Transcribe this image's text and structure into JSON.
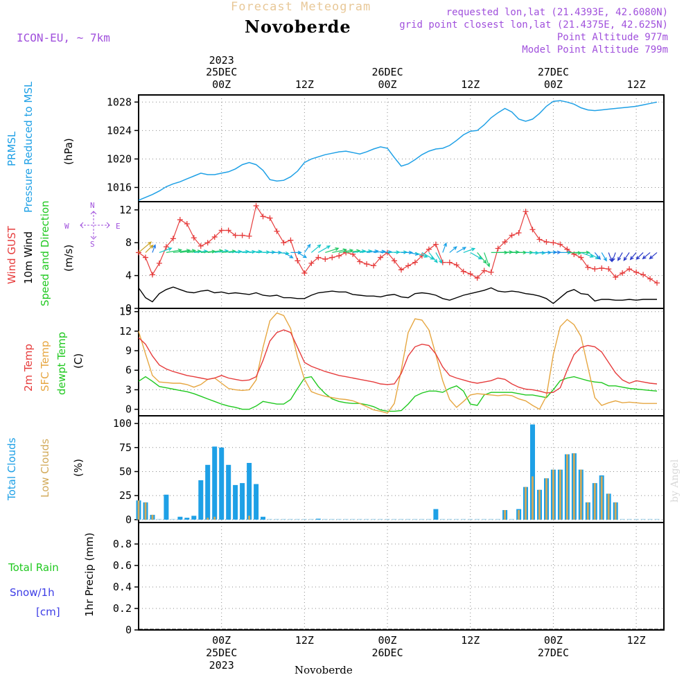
{
  "header": {
    "product": "Forecast Meteogram",
    "location": "Novoberde",
    "model": "ICON-EU, ~ 7km",
    "requested": "requested lon,lat (21.4393E, 42.6080N)",
    "gridpoint": "grid point closest lon,lat (21.4375E, 42.625N)",
    "point_alt": "Point Altitude 977m",
    "model_alt": "Model Point Altitude 799m",
    "footer_location": "Novoberde",
    "credit": "by Angel"
  },
  "time_axis": {
    "top": [
      {
        "l1": "2023",
        "l2": "25DEC",
        "l3": "00Z",
        "h": 12
      },
      {
        "l1": "",
        "l2": "",
        "l3": "12Z",
        "h": 24
      },
      {
        "l1": "",
        "l2": "26DEC",
        "l3": "00Z",
        "h": 36
      },
      {
        "l1": "",
        "l2": "",
        "l3": "12Z",
        "h": 48
      },
      {
        "l1": "",
        "l2": "27DEC",
        "l3": "00Z",
        "h": 60
      },
      {
        "l1": "",
        "l2": "",
        "l3": "12Z",
        "h": 72
      }
    ],
    "bottom": [
      {
        "l1": "00Z",
        "l2": "25DEC",
        "l3": "2023",
        "h": 12
      },
      {
        "l1": "12Z",
        "l2": "",
        "l3": "",
        "h": 24
      },
      {
        "l1": "00Z",
        "l2": "26DEC",
        "l3": "",
        "h": 36
      },
      {
        "l1": "12Z",
        "l2": "",
        "l3": "",
        "h": 48
      },
      {
        "l1": "00Z",
        "l2": "27DEC",
        "l3": "",
        "h": 60
      },
      {
        "l1": "12Z",
        "l2": "",
        "l3": "",
        "h": 72
      }
    ]
  },
  "panels": {
    "pressure": {
      "label1": "PRMSL",
      "label2": "Pressure Reduced to MSL",
      "unit": "(hPa)"
    },
    "wind": {
      "gust": "Wind GUST",
      "wind10": "10m Wind",
      "speed": "Speed and Direction",
      "unit": "(m/s)",
      "compass_n": "N",
      "compass_w": "W",
      "compass_e": "E",
      "compass_s": "S"
    },
    "temp": {
      "t2m": "2m Temp",
      "sfc": "SFC Temp",
      "dewpt": "dewpt Temp",
      "unit": "(C)"
    },
    "clouds": {
      "total": "Total Clouds",
      "low": "Low Clouds",
      "unit": "(%)"
    },
    "precip": {
      "rain": "Total  Rain",
      "snow": "Snow/1h",
      "cm": "[cm]",
      "unit": "1hr Precip (mm)"
    }
  },
  "colors": {
    "pressure": "#1ea0e6",
    "gust": "#e63c3c",
    "wind10": "#000000",
    "t2m": "#e63c3c",
    "sfc": "#e6a640",
    "dewpt": "#1ec81e",
    "total_cloud": "#1ea0e6",
    "low_cloud": "#d2aa5a",
    "precip_label": "#1ec81e",
    "snow_label": "#3c3ce6",
    "purple": "#a050dc",
    "title": "#e8c898"
  },
  "chart_data": [
    {
      "type": "line",
      "name": "PRMSL",
      "unit": "hPa",
      "ylim": [
        1014,
        1029
      ],
      "yticks": [
        1016,
        1020,
        1024,
        1028
      ],
      "x": [
        0,
        1,
        2,
        3,
        4,
        5,
        6,
        7,
        8,
        9,
        10,
        11,
        12,
        13,
        14,
        15,
        16,
        17,
        18,
        19,
        20,
        21,
        22,
        23,
        24,
        25,
        26,
        27,
        28,
        29,
        30,
        31,
        32,
        33,
        34,
        35,
        36,
        37,
        38,
        39,
        40,
        41,
        42,
        43,
        44,
        45,
        46,
        47,
        48,
        49,
        50,
        51,
        52,
        53,
        54,
        55,
        56,
        57,
        58,
        59,
        60,
        61,
        62,
        63,
        64,
        65,
        66,
        67,
        68,
        69,
        70,
        71,
        72,
        73,
        74,
        75
      ],
      "values": [
        1014.2,
        1014.6,
        1015.0,
        1015.5,
        1016.1,
        1016.5,
        1016.8,
        1017.2,
        1017.6,
        1018.0,
        1017.8,
        1017.8,
        1018.0,
        1018.2,
        1018.6,
        1019.2,
        1019.5,
        1019.2,
        1018.4,
        1017.1,
        1016.9,
        1017.0,
        1017.5,
        1018.3,
        1019.5,
        1020.0,
        1020.3,
        1020.6,
        1020.8,
        1021.0,
        1021.1,
        1020.9,
        1020.7,
        1021.0,
        1021.4,
        1021.7,
        1021.5,
        1020.2,
        1019.0,
        1019.3,
        1019.9,
        1020.6,
        1021.1,
        1021.4,
        1021.5,
        1021.9,
        1022.6,
        1023.4,
        1023.9,
        1024.0,
        1024.8,
        1025.8,
        1026.5,
        1027.1,
        1026.6,
        1025.6,
        1025.3,
        1025.6,
        1026.4,
        1027.4,
        1028.1,
        1028.2,
        1028.0,
        1027.7,
        1027.2,
        1026.9,
        1026.8,
        1026.9,
        1027.0,
        1027.1,
        1027.2,
        1027.3,
        1027.4,
        1027.6,
        1027.8,
        1028.0
      ]
    },
    {
      "type": "line",
      "name": "Wind GUST / 10m Wind",
      "unit": "m/s",
      "ylim": [
        0,
        13
      ],
      "yticks": [
        0,
        4,
        8,
        12
      ],
      "x": [
        0,
        1,
        2,
        3,
        4,
        5,
        6,
        7,
        8,
        9,
        10,
        11,
        12,
        13,
        14,
        15,
        16,
        17,
        18,
        19,
        20,
        21,
        22,
        23,
        24,
        25,
        26,
        27,
        28,
        29,
        30,
        31,
        32,
        33,
        34,
        35,
        36,
        37,
        38,
        39,
        40,
        41,
        42,
        43,
        44,
        45,
        46,
        47,
        48,
        49,
        50,
        51,
        52,
        53,
        54,
        55,
        56,
        57,
        58,
        59,
        60,
        61,
        62,
        63,
        64,
        65,
        66,
        67,
        68,
        69,
        70,
        71,
        72,
        73,
        74,
        75
      ],
      "gust": [
        6.8,
        6.2,
        4.1,
        5.5,
        7.5,
        8.5,
        10.8,
        10.3,
        8.6,
        7.6,
        8.0,
        8.7,
        9.5,
        9.5,
        8.9,
        8.9,
        8.8,
        12.5,
        11.2,
        11.0,
        9.4,
        8.0,
        8.3,
        5.8,
        4.3,
        5.5,
        6.2,
        6.0,
        6.2,
        6.4,
        6.8,
        6.6,
        5.7,
        5.4,
        5.2,
        6.2,
        6.8,
        5.8,
        4.7,
        5.2,
        5.6,
        6.4,
        7.2,
        7.8,
        5.6,
        5.6,
        5.3,
        4.5,
        4.2,
        3.7,
        4.6,
        4.4,
        7.3,
        8.1,
        8.9,
        9.2,
        11.8,
        9.6,
        8.4,
        8.1,
        8.0,
        7.8,
        7.2,
        6.6,
        6.2,
        5.0,
        4.8,
        4.9,
        4.8,
        3.8,
        4.3,
        4.8,
        4.4,
        4.1,
        3.6,
        3.1
      ],
      "wind10": [
        2.5,
        1.3,
        0.8,
        1.8,
        2.3,
        2.6,
        2.3,
        2.0,
        1.9,
        2.1,
        2.2,
        1.9,
        2.0,
        1.8,
        1.9,
        1.8,
        1.7,
        1.9,
        1.6,
        1.5,
        1.6,
        1.3,
        1.3,
        1.2,
        1.2,
        1.6,
        1.9,
        2.0,
        2.1,
        2.0,
        2.0,
        1.7,
        1.6,
        1.5,
        1.5,
        1.4,
        1.6,
        1.7,
        1.4,
        1.3,
        1.8,
        1.9,
        1.8,
        1.6,
        1.2,
        1.0,
        1.3,
        1.6,
        1.8,
        2.0,
        2.2,
        2.5,
        2.1,
        2.0,
        2.1,
        2.0,
        1.8,
        1.7,
        1.5,
        1.2,
        0.6,
        1.3,
        2.0,
        2.3,
        1.8,
        1.7,
        0.9,
        1.1,
        1.1,
        1.0,
        1.0,
        1.1,
        1.0,
        1.1,
        1.1,
        1.1
      ]
    },
    {
      "type": "line",
      "name": "2m Temp / SFC Temp / dewpt Temp",
      "unit": "C",
      "ylim": [
        -1,
        15.5
      ],
      "yticks": [
        0,
        3,
        6,
        9,
        12,
        15
      ],
      "x": [
        0,
        1,
        2,
        3,
        4,
        5,
        6,
        7,
        8,
        9,
        10,
        11,
        12,
        13,
        14,
        15,
        16,
        17,
        18,
        19,
        20,
        21,
        22,
        23,
        24,
        25,
        26,
        27,
        28,
        29,
        30,
        31,
        32,
        33,
        34,
        35,
        36,
        37,
        38,
        39,
        40,
        41,
        42,
        43,
        44,
        45,
        46,
        47,
        48,
        49,
        50,
        51,
        52,
        53,
        54,
        55,
        56,
        57,
        58,
        59,
        60,
        61,
        62,
        63,
        64,
        65,
        66,
        67,
        68,
        69,
        70,
        71,
        72,
        73,
        74,
        75
      ],
      "t2m": [
        11,
        10,
        8.2,
        6.8,
        6.2,
        5.8,
        5.5,
        5.2,
        5.0,
        4.8,
        4.6,
        4.8,
        5.2,
        4.8,
        4.6,
        4.4,
        4.5,
        5.0,
        7.5,
        10.5,
        11.8,
        12.2,
        11.8,
        9.5,
        7.2,
        6.6,
        6.2,
        5.8,
        5.5,
        5.2,
        5.0,
        4.8,
        4.6,
        4.4,
        4.2,
        3.9,
        3.8,
        3.9,
        5.5,
        8.2,
        9.6,
        10.0,
        9.8,
        8.5,
        6.5,
        5.2,
        4.8,
        4.5,
        4.2,
        4.0,
        4.2,
        4.4,
        4.8,
        4.6,
        3.9,
        3.4,
        3.1,
        3.0,
        2.8,
        2.5,
        2.6,
        3.3,
        6.0,
        8.4,
        9.5,
        9.8,
        9.6,
        8.8,
        7.2,
        5.6,
        4.5,
        4.0,
        4.4,
        4.2,
        4.0,
        3.9
      ],
      "sfc": [
        12,
        8.5,
        5.2,
        4.2,
        4.1,
        4.0,
        4.0,
        3.8,
        3.4,
        3.8,
        4.6,
        4.8,
        4.0,
        3.2,
        3.0,
        2.9,
        3.0,
        4.5,
        9.5,
        13.6,
        14.8,
        14.4,
        12.4,
        8.0,
        4.6,
        2.7,
        2.3,
        2.0,
        1.8,
        1.6,
        1.5,
        1.3,
        0.9,
        0.4,
        -0.1,
        -0.3,
        -0.6,
        0.9,
        6.0,
        11.8,
        13.9,
        13.7,
        12.2,
        8.4,
        4.4,
        1.5,
        0.3,
        1.2,
        2.2,
        2.4,
        2.3,
        2.2,
        2.1,
        2.2,
        2.1,
        1.6,
        1.3,
        0.6,
        0.0,
        2.0,
        8.4,
        12.7,
        13.8,
        13.0,
        11.2,
        6.5,
        1.8,
        0.6,
        1.0,
        1.3,
        1.0,
        1.1,
        1.0,
        0.9,
        0.9,
        0.9
      ],
      "dewpt": [
        4.3,
        5.0,
        4.3,
        3.5,
        3.3,
        3.1,
        2.9,
        2.7,
        2.4,
        2.0,
        1.6,
        1.2,
        0.8,
        0.5,
        0.3,
        0.0,
        0.0,
        0.5,
        1.2,
        1.0,
        0.8,
        0.8,
        1.5,
        3.2,
        4.8,
        5.0,
        3.5,
        2.4,
        1.6,
        1.2,
        1.0,
        0.9,
        0.9,
        0.7,
        0.4,
        -0.1,
        -0.3,
        -0.3,
        -0.2,
        0.8,
        2.0,
        2.5,
        2.8,
        2.8,
        2.6,
        3.2,
        3.6,
        2.8,
        0.8,
        0.6,
        2.2,
        2.6,
        2.6,
        2.6,
        2.6,
        2.4,
        2.2,
        2.2,
        2.0,
        1.8,
        3.0,
        4.4,
        4.8,
        5.0,
        4.7,
        4.4,
        4.2,
        4.1,
        3.6,
        3.6,
        3.4,
        3.2,
        3.1,
        3.0,
        2.9,
        2.8
      ]
    },
    {
      "type": "bar",
      "name": "Total Clouds / Low Clouds",
      "unit": "%",
      "ylim": [
        -3,
        108
      ],
      "yticks": [
        0,
        25,
        50,
        75,
        100
      ],
      "x": [
        0,
        1,
        2,
        3,
        4,
        5,
        6,
        7,
        8,
        9,
        10,
        11,
        12,
        13,
        14,
        15,
        16,
        17,
        18,
        19,
        20,
        21,
        22,
        23,
        24,
        25,
        26,
        27,
        28,
        29,
        30,
        31,
        32,
        33,
        34,
        35,
        36,
        37,
        38,
        39,
        40,
        41,
        42,
        43,
        44,
        45,
        46,
        47,
        48,
        49,
        50,
        51,
        52,
        53,
        54,
        55,
        56,
        57,
        58,
        59,
        60,
        61,
        62,
        63,
        64,
        65,
        66,
        67,
        68,
        69,
        70,
        71,
        72,
        73,
        74,
        75
      ],
      "total": [
        20,
        18,
        5,
        0,
        26,
        0,
        3,
        2,
        4,
        41,
        57,
        76,
        75,
        57,
        36,
        38,
        59,
        37,
        3,
        0,
        0,
        0,
        0,
        0,
        0,
        0,
        1,
        0,
        0,
        0,
        0,
        0,
        0,
        0,
        0,
        0,
        0,
        0,
        0,
        0,
        0,
        0,
        0,
        11,
        0,
        0,
        0,
        0,
        0,
        0,
        0,
        0,
        0,
        10,
        0,
        11,
        34,
        99,
        31,
        43,
        52,
        52,
        68,
        69,
        52,
        18,
        38,
        46,
        27,
        18,
        0,
        0,
        0,
        0,
        0,
        0
      ],
      "low": [
        20,
        18,
        5,
        0,
        0,
        0,
        0,
        0,
        0,
        0,
        2,
        3,
        0,
        0,
        0,
        0,
        4,
        0,
        0,
        0,
        0,
        0,
        0,
        0,
        0,
        0,
        0,
        0,
        0,
        0,
        0,
        0,
        0,
        0,
        0,
        0,
        0,
        0,
        0,
        0,
        0,
        0,
        0,
        0,
        0,
        0,
        0,
        0,
        0,
        0,
        0,
        0,
        0,
        10,
        0,
        10,
        34,
        45,
        31,
        43,
        52,
        52,
        68,
        69,
        52,
        18,
        38,
        45,
        27,
        18,
        0,
        0,
        0,
        0,
        0,
        0
      ]
    },
    {
      "type": "bar",
      "name": "1hr Precip",
      "unit": "mm",
      "ylim": [
        0,
        1.0
      ],
      "yticks": [
        0,
        0.2,
        0.4,
        0.6,
        0.8
      ],
      "x": [
        0,
        1,
        2,
        3,
        4,
        5,
        6,
        7,
        8,
        9,
        10,
        11,
        12,
        13,
        14,
        15,
        16,
        17,
        18,
        19,
        20,
        21,
        22,
        23,
        24,
        25,
        26,
        27,
        28,
        29,
        30,
        31,
        32,
        33,
        34,
        35,
        36,
        37,
        38,
        39,
        40,
        41,
        42,
        43,
        44,
        45,
        46,
        47,
        48,
        49,
        50,
        51,
        52,
        53,
        54,
        55,
        56,
        57,
        58,
        59,
        60,
        61,
        62,
        63,
        64,
        65,
        66,
        67,
        68,
        69,
        70,
        71,
        72,
        73,
        74,
        75
      ],
      "rain": [
        0,
        0,
        0,
        0,
        0,
        0,
        0,
        0,
        0,
        0,
        0,
        0,
        0,
        0,
        0,
        0,
        0,
        0,
        0,
        0,
        0,
        0,
        0,
        0,
        0,
        0,
        0,
        0,
        0,
        0,
        0,
        0,
        0,
        0,
        0,
        0,
        0,
        0,
        0,
        0,
        0,
        0,
        0,
        0,
        0,
        0,
        0,
        0,
        0,
        0,
        0,
        0,
        0,
        0,
        0,
        0,
        0,
        0,
        0,
        0,
        0,
        0,
        0,
        0,
        0,
        0,
        0,
        0,
        0,
        0,
        0,
        0,
        0,
        0,
        0,
        0
      ]
    }
  ],
  "wind_vectors": {
    "x": [
      0,
      1,
      2,
      3,
      4,
      5,
      6,
      7,
      8,
      9,
      10,
      11,
      12,
      13,
      14,
      15,
      16,
      17,
      18,
      19,
      20,
      21,
      22,
      23,
      24,
      25,
      26,
      27,
      28,
      29,
      30,
      31,
      32,
      33,
      34,
      35,
      36,
      37,
      38,
      39,
      40,
      41,
      42,
      43,
      44,
      45,
      46,
      47,
      48,
      49,
      50,
      51,
      52,
      53,
      54,
      55,
      56,
      57,
      58,
      59,
      60,
      61,
      62,
      63,
      64,
      65,
      66,
      67,
      68,
      69,
      70,
      71,
      72,
      73,
      74,
      75
    ],
    "dir_deg": [
      230,
      225,
      200,
      250,
      260,
      262,
      262,
      264,
      264,
      265,
      262,
      262,
      264,
      265,
      265,
      266,
      264,
      268,
      268,
      270,
      275,
      300,
      270,
      300,
      215,
      230,
      240,
      252,
      258,
      260,
      262,
      262,
      262,
      262,
      264,
      266,
      268,
      268,
      270,
      280,
      290,
      300,
      320,
      330,
      200,
      230,
      240,
      250,
      300,
      320,
      340,
      270,
      268,
      268,
      270,
      270,
      272,
      272,
      270,
      268,
      268,
      270,
      272,
      270,
      290,
      300,
      320,
      330,
      340,
      20,
      30,
      35,
      40,
      45,
      50,
      50
    ]
  }
}
